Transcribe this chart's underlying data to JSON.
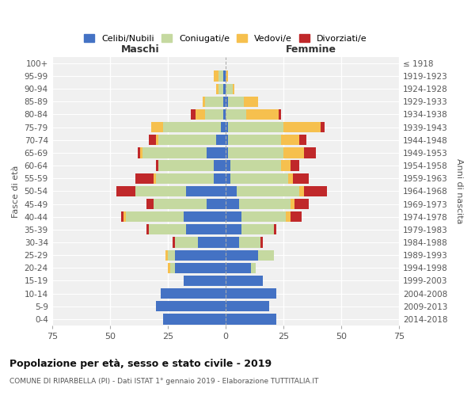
{
  "age_groups": [
    "0-4",
    "5-9",
    "10-14",
    "15-19",
    "20-24",
    "25-29",
    "30-34",
    "35-39",
    "40-44",
    "45-49",
    "50-54",
    "55-59",
    "60-64",
    "65-69",
    "70-74",
    "75-79",
    "80-84",
    "85-89",
    "90-94",
    "95-99",
    "100+"
  ],
  "birth_years": [
    "2014-2018",
    "2009-2013",
    "2004-2008",
    "1999-2003",
    "1994-1998",
    "1989-1993",
    "1984-1988",
    "1979-1983",
    "1974-1978",
    "1969-1973",
    "1964-1968",
    "1959-1963",
    "1954-1958",
    "1949-1953",
    "1944-1948",
    "1939-1943",
    "1934-1938",
    "1929-1933",
    "1924-1928",
    "1919-1923",
    "≤ 1918"
  ],
  "maschi": {
    "celibi": [
      27,
      30,
      28,
      18,
      22,
      22,
      12,
      17,
      18,
      8,
      17,
      5,
      5,
      8,
      4,
      2,
      1,
      1,
      1,
      1,
      0
    ],
    "coniugati": [
      0,
      0,
      0,
      0,
      2,
      3,
      10,
      16,
      25,
      23,
      22,
      25,
      24,
      28,
      25,
      25,
      8,
      8,
      2,
      2,
      0
    ],
    "vedovi": [
      0,
      0,
      0,
      0,
      1,
      1,
      0,
      0,
      1,
      0,
      0,
      1,
      0,
      1,
      1,
      5,
      4,
      1,
      1,
      2,
      0
    ],
    "divorziati": [
      0,
      0,
      0,
      0,
      0,
      0,
      1,
      1,
      1,
      3,
      8,
      8,
      1,
      1,
      3,
      0,
      2,
      0,
      0,
      0,
      0
    ]
  },
  "femmine": {
    "nubili": [
      22,
      19,
      22,
      16,
      11,
      14,
      6,
      7,
      7,
      6,
      5,
      2,
      2,
      1,
      1,
      1,
      0,
      1,
      0,
      0,
      0
    ],
    "coniugate": [
      0,
      0,
      0,
      0,
      2,
      7,
      9,
      14,
      19,
      22,
      27,
      25,
      22,
      24,
      23,
      24,
      9,
      7,
      3,
      0,
      0
    ],
    "vedove": [
      0,
      0,
      0,
      0,
      0,
      0,
      0,
      0,
      2,
      2,
      2,
      2,
      4,
      9,
      8,
      16,
      14,
      6,
      1,
      1,
      0
    ],
    "divorziate": [
      0,
      0,
      0,
      0,
      0,
      0,
      1,
      1,
      5,
      6,
      10,
      7,
      4,
      5,
      3,
      2,
      1,
      0,
      0,
      0,
      0
    ]
  },
  "colors": {
    "celibi": "#4472C4",
    "coniugati": "#c5d9a0",
    "vedovi": "#f6c04e",
    "divorziati": "#c0282a"
  },
  "xlim": 75,
  "title": "Popolazione per età, sesso e stato civile - 2019",
  "subtitle": "COMUNE DI RIPARBELLA (PI) - Dati ISTAT 1° gennaio 2019 - Elaborazione TUTTITALIA.IT",
  "ylabel_left": "Fasce di età",
  "ylabel_right": "Anni di nascita",
  "xlabel_left": "Maschi",
  "xlabel_right": "Femmine",
  "bg_color": "#f0f0f0",
  "legend_labels": [
    "Celibi/Nubili",
    "Coniugati/e",
    "Vedovi/e",
    "Divorziati/e"
  ]
}
